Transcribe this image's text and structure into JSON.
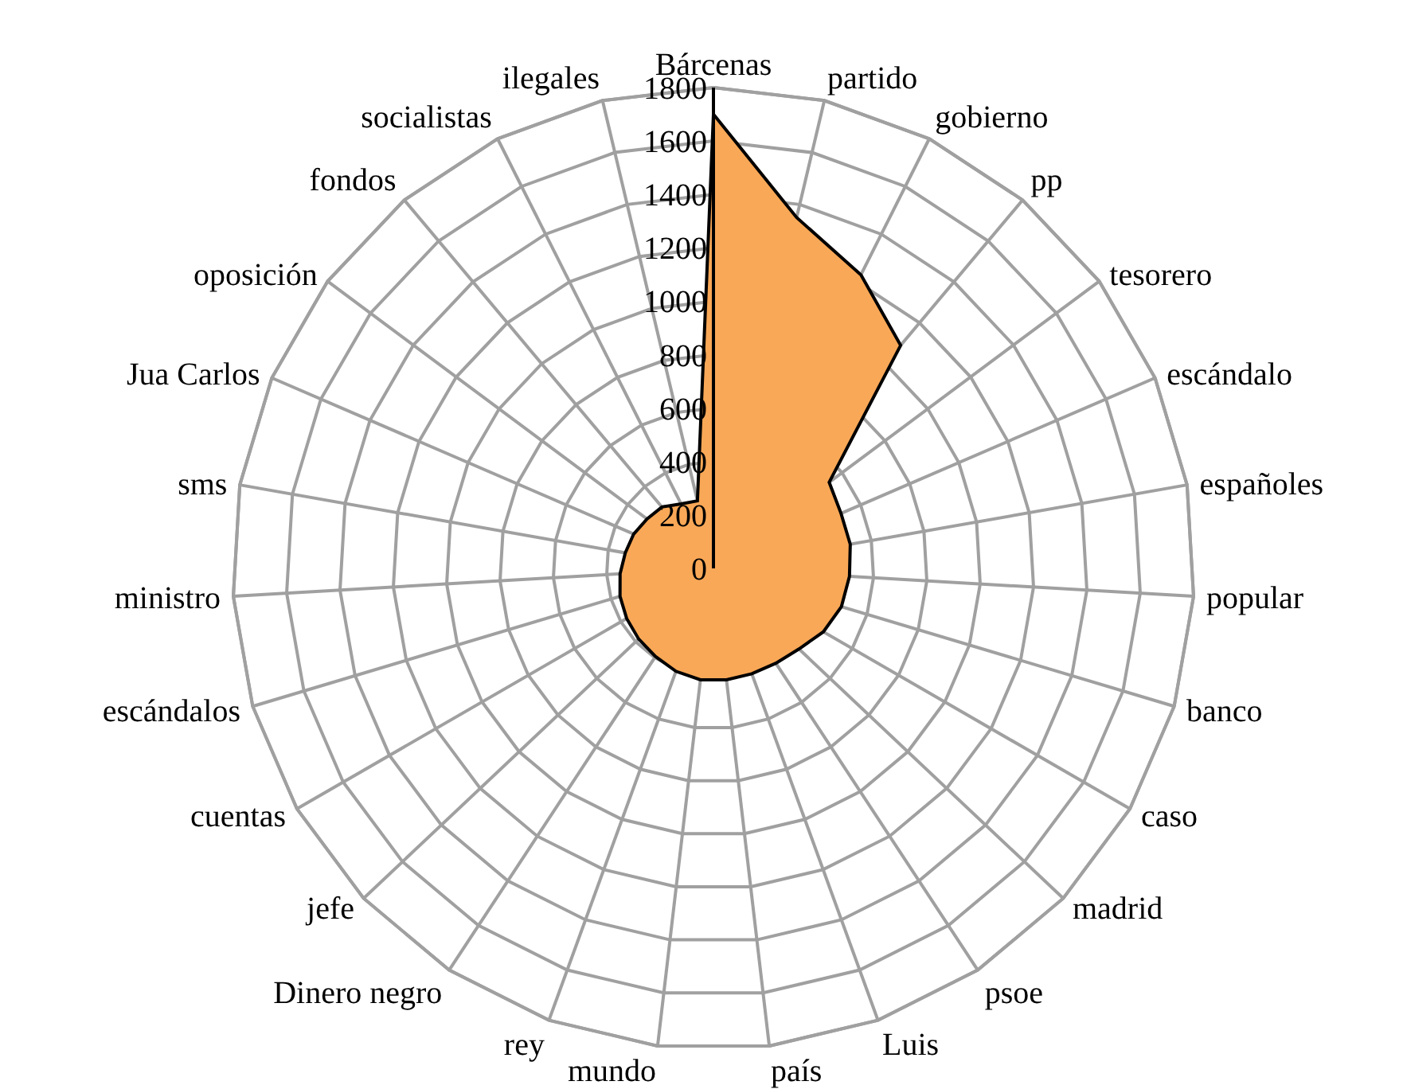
{
  "chart_data": {
    "type": "radar",
    "categories": [
      "Bárcenas",
      "partido",
      "gobierno",
      "pp",
      "tesorero",
      "escándalo",
      "españoles",
      "popular",
      "banco",
      "caso",
      "madrid",
      "psoe",
      "Luis",
      "país",
      "mundo",
      "rey",
      "Dinero negro",
      "jefe",
      "cuentas",
      "escándalos",
      "ministro",
      "sms",
      "Jua Carlos",
      "oposición",
      "fondos",
      "socialistas",
      "ilegales"
    ],
    "series": [
      {
        "color": "#f9a857",
        "values": [
          1700,
          1350,
          1230,
          1090,
          540,
          520,
          520,
          510,
          500,
          475,
          440,
          425,
          420,
          420,
          420,
          410,
          395,
          385,
          375,
          365,
          350,
          335,
          325,
          310,
          300,
          270,
          260
        ]
      }
    ],
    "ylim": [
      0,
      1800
    ],
    "yticks": [
      0,
      200,
      400,
      600,
      800,
      1000,
      1200,
      1400,
      1600,
      1800
    ],
    "grid": true
  }
}
